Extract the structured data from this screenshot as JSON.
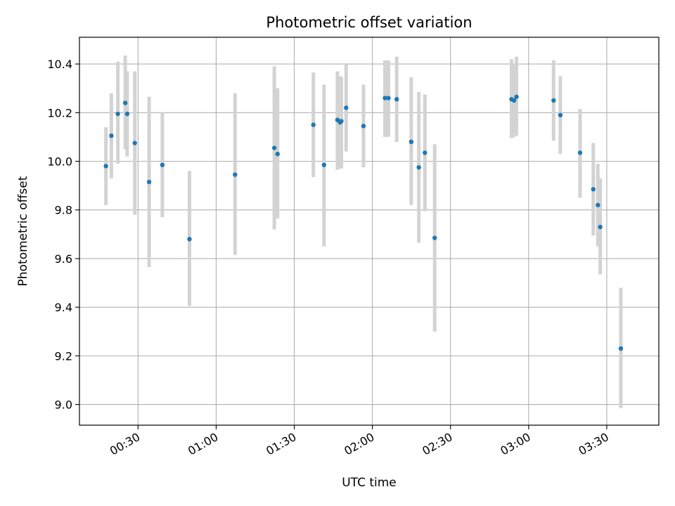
{
  "chart_data": {
    "type": "scatter",
    "title": "Photometric offset variation",
    "xlabel": "UTC time",
    "ylabel": "Photometric offset",
    "x_unit": "UTC time (HH:MM)",
    "xlim": [
      "00:07:30",
      "03:50:00"
    ],
    "ylim": [
      8.915,
      10.51
    ],
    "x_ticks": [
      "00:30",
      "01:00",
      "01:30",
      "02:00",
      "02:30",
      "03:00",
      "03:30"
    ],
    "y_ticks": [
      9.0,
      9.2,
      9.4,
      9.6,
      9.8,
      10.0,
      10.2,
      10.4
    ],
    "grid": true,
    "legend": "none",
    "colors": {
      "point": "#1f77b4",
      "errorbar": "#d3d3d3",
      "grid": "#b0b0b0",
      "axes": "#000000"
    },
    "series": [
      {
        "points": [
          {
            "x": "00:17:40",
            "y": 9.98,
            "ylow": 9.82,
            "yhigh": 10.14
          },
          {
            "x": "00:19:45",
            "y": 10.105,
            "ylow": 9.93,
            "yhigh": 10.28
          },
          {
            "x": "00:22:15",
            "y": 10.195,
            "ylow": 9.99,
            "yhigh": 10.41
          },
          {
            "x": "00:25:05",
            "y": 10.24,
            "ylow": 10.05,
            "yhigh": 10.435
          },
          {
            "x": "00:25:50",
            "y": 10.195,
            "ylow": 10.02,
            "yhigh": 10.37
          },
          {
            "x": "00:28:45",
            "y": 10.075,
            "ylow": 9.78,
            "yhigh": 10.37
          },
          {
            "x": "00:34:15",
            "y": 9.915,
            "ylow": 9.565,
            "yhigh": 10.265
          },
          {
            "x": "00:39:20",
            "y": 9.985,
            "ylow": 9.77,
            "yhigh": 10.2
          },
          {
            "x": "00:49:45",
            "y": 9.68,
            "ylow": 9.405,
            "yhigh": 9.96
          },
          {
            "x": "01:07:15",
            "y": 9.945,
            "ylow": 9.615,
            "yhigh": 10.28
          },
          {
            "x": "01:22:20",
            "y": 10.055,
            "ylow": 9.72,
            "yhigh": 10.39
          },
          {
            "x": "01:23:35",
            "y": 10.03,
            "ylow": 9.765,
            "yhigh": 10.3
          },
          {
            "x": "01:37:20",
            "y": 10.15,
            "ylow": 9.935,
            "yhigh": 10.365
          },
          {
            "x": "01:41:25",
            "y": 9.985,
            "ylow": 9.65,
            "yhigh": 10.315
          },
          {
            "x": "01:46:35",
            "y": 10.17,
            "ylow": 9.965,
            "yhigh": 10.37
          },
          {
            "x": "01:47:35",
            "y": 10.16,
            "ylow": 9.97,
            "yhigh": 10.35
          },
          {
            "x": "01:48:05",
            "y": 10.165,
            "ylow": 9.97,
            "yhigh": 10.345
          },
          {
            "x": "01:49:55",
            "y": 10.22,
            "ylow": 10.04,
            "yhigh": 10.4
          },
          {
            "x": "01:56:35",
            "y": 10.145,
            "ylow": 9.975,
            "yhigh": 10.315
          },
          {
            "x": "02:04:50",
            "y": 10.26,
            "ylow": 10.1,
            "yhigh": 10.415
          },
          {
            "x": "02:06:10",
            "y": 10.26,
            "ylow": 10.1,
            "yhigh": 10.415
          },
          {
            "x": "02:09:20",
            "y": 10.255,
            "ylow": 10.08,
            "yhigh": 10.43
          },
          {
            "x": "02:14:55",
            "y": 10.08,
            "ylow": 9.82,
            "yhigh": 10.345
          },
          {
            "x": "02:17:50",
            "y": 9.975,
            "ylow": 9.665,
            "yhigh": 10.285
          },
          {
            "x": "02:20:10",
            "y": 10.035,
            "ylow": 9.795,
            "yhigh": 10.275
          },
          {
            "x": "02:23:55",
            "y": 9.685,
            "ylow": 9.3,
            "yhigh": 10.07
          },
          {
            "x": "02:53:25",
            "y": 10.255,
            "ylow": 10.095,
            "yhigh": 10.42
          },
          {
            "x": "02:54:25",
            "y": 10.25,
            "ylow": 10.1,
            "yhigh": 10.4
          },
          {
            "x": "02:55:20",
            "y": 10.265,
            "ylow": 10.105,
            "yhigh": 10.43
          },
          {
            "x": "03:09:35",
            "y": 10.25,
            "ylow": 10.085,
            "yhigh": 10.415
          },
          {
            "x": "03:12:10",
            "y": 10.19,
            "ylow": 10.03,
            "yhigh": 10.35
          },
          {
            "x": "03:19:45",
            "y": 10.035,
            "ylow": 9.85,
            "yhigh": 10.215
          },
          {
            "x": "03:24:50",
            "y": 9.885,
            "ylow": 9.695,
            "yhigh": 10.075
          },
          {
            "x": "03:26:35",
            "y": 9.82,
            "ylow": 9.65,
            "yhigh": 9.99
          },
          {
            "x": "03:27:30",
            "y": 9.73,
            "ylow": 9.535,
            "yhigh": 9.93
          },
          {
            "x": "03:35:25",
            "y": 9.23,
            "ylow": 8.985,
            "yhigh": 9.48
          }
        ]
      }
    ]
  }
}
